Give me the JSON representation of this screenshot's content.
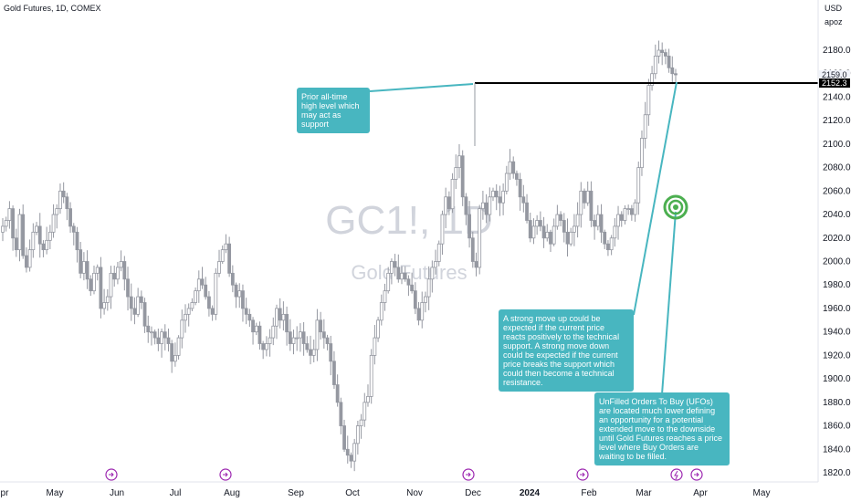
{
  "header": {
    "title": "Gold Futures, 1D, COMEX"
  },
  "price_axis": {
    "currency": "USD",
    "user": "apoz"
  },
  "watermark": {
    "symbol": "GC1!, 1D",
    "name": "Gold Futures"
  },
  "price_tags": [
    {
      "value": "2159.0",
      "bg": "#f0f3fa",
      "fg": "#131722"
    },
    {
      "value": "2152.3",
      "bg": "#000000",
      "fg": "#ffffff"
    }
  ],
  "annotations": [
    {
      "text": "Prior all-time high level which may act as support"
    },
    {
      "text": "A strong move up could be expected if the current price reacts positively to the technical support. A strong move down could be expected if the current price breaks the support which could then become a technical resistance."
    },
    {
      "text": "UnFilled Orders To Buy (UFOs) are located much lower defining an opportunity for a potential extended move to the downside until Gold Futures reaches a price level where Buy Orders are waiting to be filled."
    }
  ],
  "colors": {
    "candle": "#9598a1",
    "note": "#48b6c0",
    "target": "#4caf50",
    "event_icon": "#9c27b0"
  },
  "event_icons": [
    "circle-arrow-icon",
    "circle-arrow-icon",
    "circle-arrow-icon",
    "circle-arrow-icon",
    "lightning-icon",
    "circle-arrow-icon"
  ],
  "chart_data": {
    "type": "candlestick",
    "title": "Gold Futures, 1D, COMEX",
    "y_range": [
      1810,
      2200
    ],
    "y_ticks": [
      "2180.0",
      "2160.0",
      "2140.0",
      "2120.0",
      "2100.0",
      "2080.0",
      "2060.0",
      "2040.0",
      "2020.0",
      "2000.0",
      "1980.0",
      "1960.0",
      "1940.0",
      "1920.0",
      "1900.0",
      "1880.0",
      "1860.0",
      "1840.0",
      "1820.0"
    ],
    "x_ticks": [
      {
        "label": "pr"
      },
      {
        "label": "May"
      },
      {
        "label": "Jun"
      },
      {
        "label": "Jul"
      },
      {
        "label": "Aug"
      },
      {
        "label": "Sep"
      },
      {
        "label": "Oct"
      },
      {
        "label": "Nov"
      },
      {
        "label": "Dec"
      },
      {
        "label": "2024",
        "bold": true
      },
      {
        "label": "Feb"
      },
      {
        "label": "Mar"
      },
      {
        "label": "Apr"
      },
      {
        "label": "May"
      }
    ],
    "support_level": 2152.3,
    "last_price": 2159.0,
    "close_path": [
      2030,
      2035,
      2045,
      2020,
      2010,
      2040,
      2005,
      1995,
      2010,
      2025,
      2030,
      2015,
      2010,
      2018,
      2025,
      2040,
      2045,
      2060,
      2055,
      2045,
      2030,
      2025,
      2010,
      1990,
      2000,
      1985,
      1975,
      1990,
      1995,
      1960,
      1965,
      1970,
      1990,
      1985,
      1995,
      2000,
      1985,
      1970,
      1960,
      1955,
      1970,
      1965,
      1945,
      1940,
      1940,
      1935,
      1930,
      1940,
      1935,
      1930,
      1915,
      1920,
      1935,
      1950,
      1955,
      1960,
      1965,
      1975,
      1985,
      1980,
      1970,
      1960,
      1955,
      1990,
      2000,
      2010,
      2015,
      1990,
      1980,
      1970,
      1975,
      1960,
      1955,
      1950,
      1940,
      1945,
      1930,
      1925,
      1930,
      1935,
      1945,
      1960,
      1950,
      1955,
      1940,
      1930,
      1935,
      1935,
      1940,
      1930,
      1925,
      1920,
      1925,
      1950,
      1940,
      1935,
      1930,
      1915,
      1895,
      1880,
      1860,
      1840,
      1835,
      1830,
      1845,
      1860,
      1865,
      1880,
      1885,
      1920,
      1935,
      1950,
      1965,
      1975,
      1990,
      2000,
      1995,
      1985,
      1990,
      1985,
      1980,
      1975,
      1960,
      1950,
      1965,
      1970,
      1985,
      1995,
      2000,
      2015,
      2040,
      2055,
      2045,
      2070,
      2080,
      2090,
      2055,
      2040,
      2020,
      2000,
      1995,
      2045,
      2050,
      2040,
      2055,
      2060,
      2055,
      2050,
      2060,
      2075,
      2085,
      2075,
      2070,
      2055,
      2050,
      2035,
      2020,
      2030,
      2035,
      2030,
      2020,
      2025,
      2015,
      2030,
      2040,
      2035,
      2025,
      2015,
      2025,
      2030,
      2040,
      2060,
      2050,
      2060,
      2035,
      2030,
      2040,
      2025,
      2015,
      2010,
      2020,
      2030,
      2040,
      2035,
      2045,
      2045,
      2040,
      2050,
      2080,
      2105,
      2125,
      2150,
      2160,
      2175,
      2180,
      2178,
      2175,
      2165,
      2160,
      2159
    ]
  }
}
